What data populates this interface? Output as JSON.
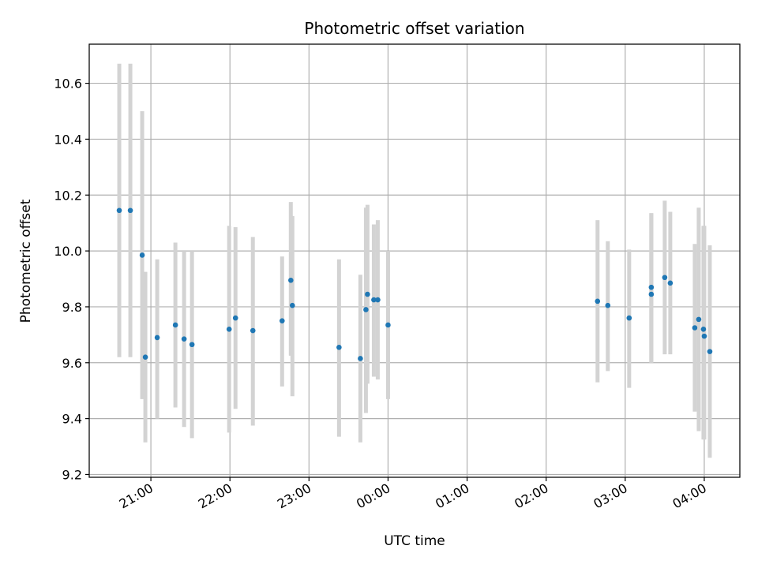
{
  "chart_data": {
    "type": "scatter",
    "title": "Photometric offset variation",
    "xlabel": "UTC time",
    "ylabel": "Photometric offset",
    "x_unit": "UTC hours (values >= 24 fall after midnight)",
    "xlim": [
      20.22,
      28.45
    ],
    "ylim": [
      9.19,
      10.74
    ],
    "x_ticks": [
      {
        "value": 21,
        "label": "21:00"
      },
      {
        "value": 22,
        "label": "22:00"
      },
      {
        "value": 23,
        "label": "23:00"
      },
      {
        "value": 24,
        "label": "00:00"
      },
      {
        "value": 25,
        "label": "01:00"
      },
      {
        "value": 26,
        "label": "02:00"
      },
      {
        "value": 27,
        "label": "03:00"
      },
      {
        "value": 28,
        "label": "04:00"
      }
    ],
    "y_ticks": [
      {
        "value": 9.2,
        "label": "9.2"
      },
      {
        "value": 9.4,
        "label": "9.4"
      },
      {
        "value": 9.6,
        "label": "9.6"
      },
      {
        "value": 9.8,
        "label": "9.8"
      },
      {
        "value": 10.0,
        "label": "10.0"
      },
      {
        "value": 10.2,
        "label": "10.2"
      },
      {
        "value": 10.4,
        "label": "10.4"
      },
      {
        "value": 10.6,
        "label": "10.6"
      }
    ],
    "grid": true,
    "colors": {
      "marker": "#1f77b4",
      "errorbar": "#d3d3d3",
      "grid": "#b0b0b0"
    },
    "points": [
      {
        "x": 20.6,
        "y": 10.145,
        "ylo": 9.62,
        "yhi": 10.67
      },
      {
        "x": 20.74,
        "y": 10.145,
        "ylo": 9.62,
        "yhi": 10.67
      },
      {
        "x": 20.89,
        "y": 9.985,
        "ylo": 9.47,
        "yhi": 10.5
      },
      {
        "x": 20.93,
        "y": 9.62,
        "ylo": 9.315,
        "yhi": 9.925
      },
      {
        "x": 21.08,
        "y": 9.69,
        "ylo": 9.4,
        "yhi": 9.97
      },
      {
        "x": 21.31,
        "y": 9.735,
        "ylo": 9.44,
        "yhi": 10.03
      },
      {
        "x": 21.42,
        "y": 9.685,
        "ylo": 9.37,
        "yhi": 10.0
      },
      {
        "x": 21.52,
        "y": 9.665,
        "ylo": 9.33,
        "yhi": 10.0
      },
      {
        "x": 21.99,
        "y": 9.72,
        "ylo": 9.35,
        "yhi": 10.09
      },
      {
        "x": 22.07,
        "y": 9.76,
        "ylo": 9.435,
        "yhi": 10.085
      },
      {
        "x": 22.29,
        "y": 9.715,
        "ylo": 9.375,
        "yhi": 10.05
      },
      {
        "x": 22.66,
        "y": 9.75,
        "ylo": 9.515,
        "yhi": 9.98
      },
      {
        "x": 22.77,
        "y": 9.895,
        "ylo": 9.625,
        "yhi": 10.175
      },
      {
        "x": 22.79,
        "y": 9.805,
        "ylo": 9.48,
        "yhi": 10.125
      },
      {
        "x": 23.38,
        "y": 9.655,
        "ylo": 9.335,
        "yhi": 9.97
      },
      {
        "x": 23.65,
        "y": 9.615,
        "ylo": 9.315,
        "yhi": 9.915
      },
      {
        "x": 23.72,
        "y": 9.79,
        "ylo": 9.42,
        "yhi": 10.155
      },
      {
        "x": 23.74,
        "y": 9.845,
        "ylo": 9.525,
        "yhi": 10.165
      },
      {
        "x": 23.82,
        "y": 9.825,
        "ylo": 9.55,
        "yhi": 10.095
      },
      {
        "x": 23.87,
        "y": 9.825,
        "ylo": 9.54,
        "yhi": 10.11
      },
      {
        "x": 24.0,
        "y": 9.735,
        "ylo": 9.47,
        "yhi": 10.0
      },
      {
        "x": 26.65,
        "y": 9.82,
        "ylo": 9.53,
        "yhi": 10.11
      },
      {
        "x": 26.78,
        "y": 9.805,
        "ylo": 9.57,
        "yhi": 10.035
      },
      {
        "x": 27.05,
        "y": 9.76,
        "ylo": 9.51,
        "yhi": 10.005
      },
      {
        "x": 27.33,
        "y": 9.87,
        "ylo": 9.6,
        "yhi": 10.135
      },
      {
        "x": 27.33,
        "y": 9.845,
        "ylo": 9.6,
        "yhi": 10.135
      },
      {
        "x": 27.5,
        "y": 9.905,
        "ylo": 9.63,
        "yhi": 10.18
      },
      {
        "x": 27.57,
        "y": 9.885,
        "ylo": 9.63,
        "yhi": 10.14
      },
      {
        "x": 27.88,
        "y": 9.725,
        "ylo": 9.425,
        "yhi": 10.025
      },
      {
        "x": 27.93,
        "y": 9.755,
        "ylo": 9.355,
        "yhi": 10.155
      },
      {
        "x": 27.99,
        "y": 9.72,
        "ylo": 9.325,
        "yhi": 10.09
      },
      {
        "x": 28.0,
        "y": 9.695,
        "ylo": 9.325,
        "yhi": 10.09
      },
      {
        "x": 28.07,
        "y": 9.64,
        "ylo": 9.26,
        "yhi": 10.02
      }
    ]
  }
}
